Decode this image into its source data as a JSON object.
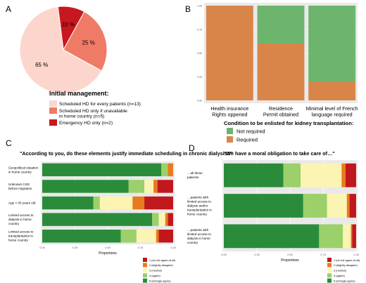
{
  "colors": {
    "pie": [
      "#fcd6cc",
      "#ef7b66",
      "#c8171e"
    ],
    "green_required_not": "#6db56d",
    "orange_required": "#d9854a",
    "likert": [
      "#c0181c",
      "#e87b1e",
      "#fcf4b3",
      "#9bd06a",
      "#2a8c3a"
    ],
    "panel_bg": "#e9e9e9",
    "grid": "#ffffff"
  },
  "chart_data": [
    {
      "panel": "A",
      "type": "pie",
      "title": "Initial management:",
      "slice_labels": [
        "65 %",
        "25 %",
        "10 %"
      ],
      "values": [
        65,
        25,
        10
      ],
      "legend": [
        "Scheduled HD for every patients (n=13)",
        "Scheduled HD only if unavailable in home country (n=5)",
        "Emergency HD only (n=2)"
      ]
    },
    {
      "panel": "B",
      "type": "bar",
      "stacked": true,
      "categories": [
        "Health insurance Rights oppened",
        "Residence Permit obtained",
        "Minimal level of French language required"
      ],
      "series": [
        {
          "name": "Not required",
          "values": [
            0.0,
            0.4,
            0.8
          ]
        },
        {
          "name": "Required",
          "values": [
            1.0,
            0.6,
            0.2
          ]
        }
      ],
      "yticks": [
        "0.00",
        "0.25",
        "0.50",
        "0.75",
        "1.00"
      ],
      "ylim": [
        0,
        1
      ],
      "legend_title": "Condition to be enlisted for kidney transplantation:",
      "legend_position": "bottom"
    },
    {
      "panel": "C",
      "type": "bar",
      "orientation": "horizontal",
      "stacked": true,
      "title": "\"According to you, do these elements justify immediate scheduling in chronic dialysis?\"",
      "categories": [
        "Geopolitical situation in home country",
        "Unknown CKD before migration",
        "Age < 45 years old",
        "Limited access to dialysis in home country",
        "Limited access to transplantation in home country"
      ],
      "series": [
        {
          "name": "5 (strongly agree)",
          "values": [
            0.91,
            0.66,
            0.39,
            0.84,
            0.6
          ]
        },
        {
          "name": "4 (agree)",
          "values": [
            0.05,
            0.12,
            0.05,
            0.05,
            0.12
          ]
        },
        {
          "name": "3 (neutral)",
          "values": [
            0.0,
            0.07,
            0.25,
            0.05,
            0.15
          ]
        },
        {
          "name": "2 (slightly disagree)",
          "values": [
            0.04,
            0.03,
            0.09,
            0.02,
            0.02
          ]
        },
        {
          "name": "1 (do not agree at all)",
          "values": [
            0.0,
            0.12,
            0.22,
            0.04,
            0.11
          ]
        }
      ],
      "xticks": [
        "0.00",
        "0.25",
        "0.50",
        "0.75",
        "1.00"
      ],
      "xlabel": "Proportions",
      "legend": [
        "1 (do not agree at all)",
        "2 (slightly disagree)",
        "3 (neutral)",
        "4 (agree)",
        "5 (strongly agree)"
      ]
    },
    {
      "panel": "D",
      "type": "bar",
      "orientation": "horizontal",
      "stacked": true,
      "title": "\"We have a moral obligation to take care of…\"",
      "categories": [
        "…all these patients",
        "…patients with limited access to dialysis and/or transplantation in home country",
        "…patients with limited access to dialysis in home country"
      ],
      "series": [
        {
          "name": "5 (strongly agree)",
          "values": [
            0.45,
            0.6,
            0.72
          ]
        },
        {
          "name": "4 (agree)",
          "values": [
            0.13,
            0.18,
            0.18
          ]
        },
        {
          "name": "3 (neutral)",
          "values": [
            0.31,
            0.15,
            0.06
          ]
        },
        {
          "name": "2 (slightly disagree)",
          "values": [
            0.03,
            0.02,
            0.01
          ]
        },
        {
          "name": "1 (do not agree at all)",
          "values": [
            0.08,
            0.05,
            0.03
          ]
        }
      ],
      "xticks": [
        "0.00",
        "0.25",
        "0.50",
        "0.75",
        "1.00"
      ],
      "xlabel": "Proportions",
      "legend": [
        "1 (do not agree at all)",
        "2 (slightly disagree)",
        "3 (neutral)",
        "4 (agree)",
        "5 (strongly agree)"
      ]
    }
  ]
}
